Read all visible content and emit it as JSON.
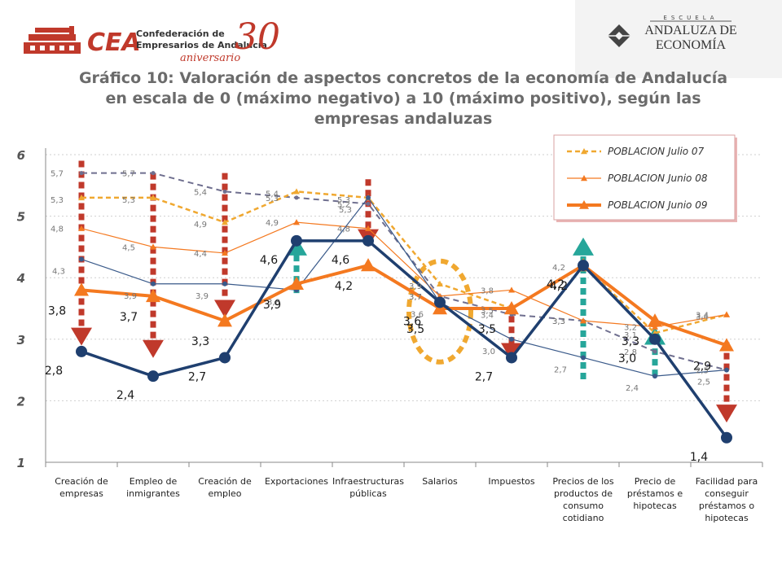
{
  "logos": {
    "cea": {
      "acronym": "CEA",
      "line1": "Confederación de",
      "line2": "Empresarios de Andalucía",
      "anniversary_number": "30",
      "anniversary_word": "aniversario"
    },
    "ead": {
      "top": "ESCUELA",
      "line1": "ANDALUZA DE",
      "line2": "ECONOMÍA"
    }
  },
  "title": {
    "line1": "Gráfico 10: Valoración de aspectos concretos de la economía de Andalucía",
    "line2": "en escala de 0 (máximo negativo) a 10 (máximo positivo), según las",
    "line3": "empresas andaluzas"
  },
  "colors": {
    "navy": "#1f3f6f",
    "orange": "#f47920",
    "gold": "#f0a830",
    "gray_dash": "#6f6f8f",
    "thin_navy": "#3a5a8a",
    "down_arrow": "#c0392b",
    "up_arrow": "#26a69a"
  },
  "chart_data": {
    "type": "line",
    "ylim": [
      1,
      6
    ],
    "yticks": [
      "1",
      "2",
      "3",
      "4",
      "5",
      "6"
    ],
    "categories": [
      "Creación de empresas",
      "Empleo de inmigrantes",
      "Creación de empleo",
      "Exportaciones",
      "Infraestructuras públicas",
      "Salarios",
      "Impuestos",
      "Precios de los productos de consumo cotidiano",
      "Precio de préstamos e hipotecas",
      "Facilidad para conseguir préstamos o hipotecas"
    ],
    "series": [
      {
        "values": [
          5.7,
          5.7,
          5.4,
          5.3,
          5.2,
          3.7,
          3.4,
          3.3,
          2.8,
          2.5
        ],
        "labels": [
          "5,7",
          "5,7",
          "5,4",
          "5,3",
          "5,2",
          "3,7",
          "3,4",
          "3,3",
          "2,8",
          "2,5"
        ],
        "style": "gray-dashed"
      },
      {
        "name": "POBLACION Julio 07",
        "values": [
          5.3,
          5.3,
          4.9,
          5.4,
          5.3,
          3.9,
          3.5,
          4.2,
          3.1,
          3.4
        ],
        "labels": [
          "5,3",
          "5,3",
          "4,9",
          "5,4",
          "5,3",
          "3,9",
          "3,5",
          "4,2",
          "3,1",
          "3,4"
        ],
        "style": "gold-dashed"
      },
      {
        "name": "POBLACION Junio 08",
        "values": [
          4.8,
          4.5,
          4.4,
          4.9,
          4.8,
          3.7,
          3.8,
          3.3,
          3.2,
          3.4
        ],
        "labels": [
          "4,8",
          "4,5",
          "4,4",
          "4,9",
          "4,8",
          "3,7",
          "3,8",
          "3,3",
          "3,2",
          "3,4"
        ],
        "style": "orange-thin"
      },
      {
        "values": [
          4.3,
          3.9,
          3.9,
          3.8,
          5.3,
          3.6,
          3.0,
          2.7,
          2.4,
          2.5
        ],
        "labels": [
          "4,3",
          "3,9",
          "3,9",
          "3,8",
          "5,3",
          "3,6",
          "3,0",
          "2,7",
          "2,4",
          "2,5"
        ],
        "style": "navy-thin"
      },
      {
        "name": "POBLACION Junio 09",
        "values": [
          3.8,
          3.7,
          3.3,
          3.9,
          4.2,
          3.5,
          3.5,
          4.2,
          3.3,
          2.9
        ],
        "labels": [
          "3,8",
          "3,7",
          "3,3",
          "3,9",
          "4,2",
          "3,5",
          "3,5",
          "4,2",
          "3,3",
          "2,9"
        ],
        "style": "orange-thick"
      },
      {
        "values": [
          2.8,
          2.4,
          2.7,
          4.6,
          4.6,
          3.6,
          2.7,
          4.2,
          3.0,
          1.4
        ],
        "labels": [
          "2,8",
          "2,4",
          "2,7",
          "4,6",
          "4,6",
          "3,6",
          "2,7",
          "4,2",
          "3,0",
          "1,4"
        ],
        "style": "navy-thick"
      }
    ],
    "arrows": [
      {
        "category": 0,
        "direction": "down",
        "from": 5.9,
        "to": 2.95
      },
      {
        "category": 1,
        "direction": "down",
        "from": 5.7,
        "to": 2.75
      },
      {
        "category": 2,
        "direction": "down",
        "from": 5.7,
        "to": 3.4
      },
      {
        "category": 3,
        "direction": "up",
        "from": 3.75,
        "to": 4.6
      },
      {
        "category": 4,
        "direction": "down",
        "from": 5.6,
        "to": 4.55
      },
      {
        "category": 6,
        "direction": "down",
        "from": 3.55,
        "to": 2.7
      },
      {
        "category": 7,
        "direction": "up",
        "from": 2.35,
        "to": 4.6
      },
      {
        "category": 8,
        "direction": "up",
        "from": 2.4,
        "to": 3.15
      },
      {
        "category": 9,
        "direction": "down",
        "from": 2.95,
        "to": 1.7
      }
    ],
    "highlight_category": 5,
    "legend_position": "top-right",
    "grid": true
  }
}
